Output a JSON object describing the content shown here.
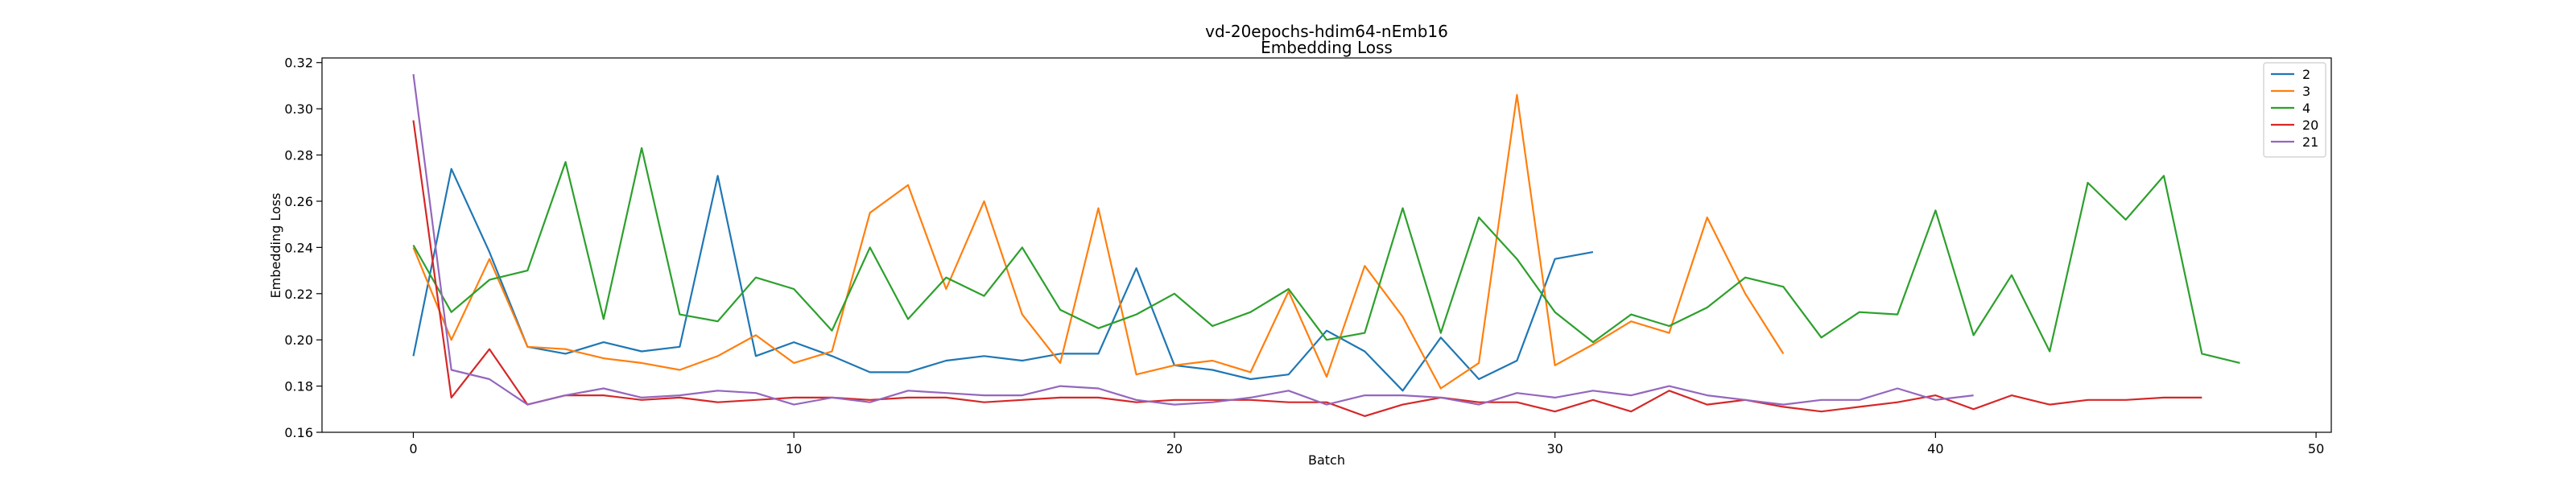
{
  "chart_data": {
    "type": "line",
    "title": "vd-20epochs-hdim64-nEmb16",
    "subtitle": "Embedding Loss",
    "xlabel": "Batch",
    "ylabel": "Embedding Loss",
    "xlim": [
      -2.4,
      50.4
    ],
    "ylim": [
      0.16,
      0.322
    ],
    "xticks": [
      0,
      10,
      20,
      30,
      40,
      50
    ],
    "yticks": [
      0.16,
      0.18,
      0.2,
      0.22,
      0.24,
      0.26,
      0.28,
      0.3,
      0.32
    ],
    "xtick_labels": [
      "0",
      "10",
      "20",
      "30",
      "40",
      "50"
    ],
    "ytick_labels": [
      "0.16",
      "0.18",
      "0.20",
      "0.22",
      "0.24",
      "0.26",
      "0.28",
      "0.30",
      "0.32"
    ],
    "grid": false,
    "legend_position": "top-right",
    "series": [
      {
        "name": "2",
        "color": "#1f77b4",
        "values": [
          0.193,
          0.274,
          0.238,
          0.197,
          0.194,
          0.199,
          0.195,
          0.197,
          0.271,
          0.193,
          0.199,
          0.193,
          0.186,
          0.186,
          0.191,
          0.193,
          0.191,
          0.194,
          0.194,
          0.231,
          0.189,
          0.187,
          0.183,
          0.185,
          0.204,
          0.195,
          0.178,
          0.201,
          0.183,
          0.191,
          0.235,
          0.238
        ]
      },
      {
        "name": "3",
        "color": "#ff7f0e",
        "values": [
          0.24,
          0.2,
          0.235,
          0.197,
          0.196,
          0.192,
          0.19,
          0.187,
          0.193,
          0.202,
          0.19,
          0.195,
          0.255,
          0.267,
          0.222,
          0.26,
          0.211,
          0.19,
          0.257,
          0.185,
          0.189,
          0.191,
          0.186,
          0.221,
          0.184,
          0.232,
          0.21,
          0.179,
          0.19,
          0.306,
          0.189,
          0.198,
          0.208,
          0.203,
          0.253,
          0.22,
          0.194
        ]
      },
      {
        "name": "4",
        "color": "#2ca02c",
        "values": [
          0.241,
          0.212,
          0.226,
          0.23,
          0.277,
          0.209,
          0.283,
          0.211,
          0.208,
          0.227,
          0.222,
          0.204,
          0.24,
          0.209,
          0.227,
          0.219,
          0.24,
          0.213,
          0.205,
          0.211,
          0.22,
          0.206,
          0.212,
          0.222,
          0.2,
          0.203,
          0.257,
          0.203,
          0.253,
          0.235,
          0.212,
          0.199,
          0.211,
          0.206,
          0.214,
          0.227,
          0.223,
          0.201,
          0.212,
          0.211,
          0.256,
          0.202,
          0.228,
          0.195,
          0.268,
          0.252,
          0.271,
          0.194,
          0.19
        ]
      },
      {
        "name": "20",
        "color": "#d62728",
        "values": [
          0.295,
          0.175,
          0.196,
          0.172,
          0.176,
          0.176,
          0.174,
          0.175,
          0.173,
          0.174,
          0.175,
          0.175,
          0.174,
          0.175,
          0.175,
          0.173,
          0.174,
          0.175,
          0.175,
          0.173,
          0.174,
          0.174,
          0.174,
          0.173,
          0.173,
          0.167,
          0.172,
          0.175,
          0.173,
          0.173,
          0.169,
          0.174,
          0.169,
          0.178,
          0.172,
          0.174,
          0.171,
          0.169,
          0.171,
          0.173,
          0.176,
          0.17,
          0.176,
          0.172,
          0.174,
          0.174,
          0.175,
          0.175
        ]
      },
      {
        "name": "21",
        "color": "#9467bd",
        "values": [
          0.315,
          0.187,
          0.183,
          0.172,
          0.176,
          0.179,
          0.175,
          0.176,
          0.178,
          0.177,
          0.172,
          0.175,
          0.173,
          0.178,
          0.177,
          0.176,
          0.176,
          0.18,
          0.179,
          0.174,
          0.172,
          0.173,
          0.175,
          0.178,
          0.172,
          0.176,
          0.176,
          0.175,
          0.172,
          0.177,
          0.175,
          0.178,
          0.176,
          0.18,
          0.176,
          0.174,
          0.172,
          0.174,
          0.174,
          0.179,
          0.174,
          0.176
        ]
      }
    ]
  }
}
